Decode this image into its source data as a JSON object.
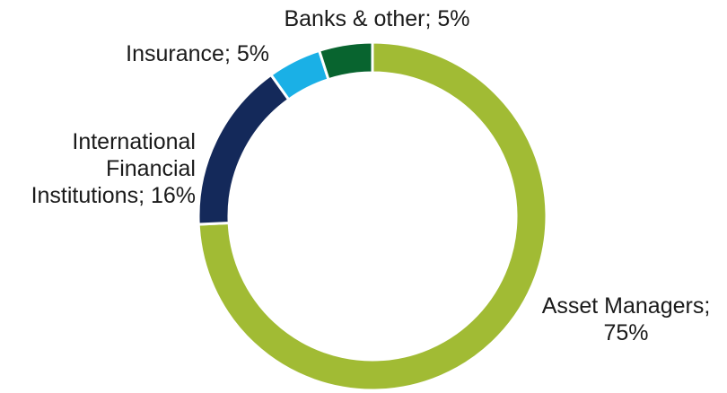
{
  "chart_data": {
    "type": "pie",
    "categories": [
      "Asset Managers",
      "International Financial Institutions",
      "Insurance",
      "Banks & other"
    ],
    "values": [
      75,
      16,
      5,
      5
    ],
    "unit": "%",
    "colors": [
      "#a1bb34",
      "#14295a",
      "#1ab0e6",
      "#08642f"
    ],
    "labels": [
      {
        "text": "Asset Managers;\n75%"
      },
      {
        "text": "International\nFinancial\nInstitutions; 16%"
      },
      {
        "text": "Insurance; 5%"
      },
      {
        "text": "Banks & other; 5%"
      }
    ]
  }
}
